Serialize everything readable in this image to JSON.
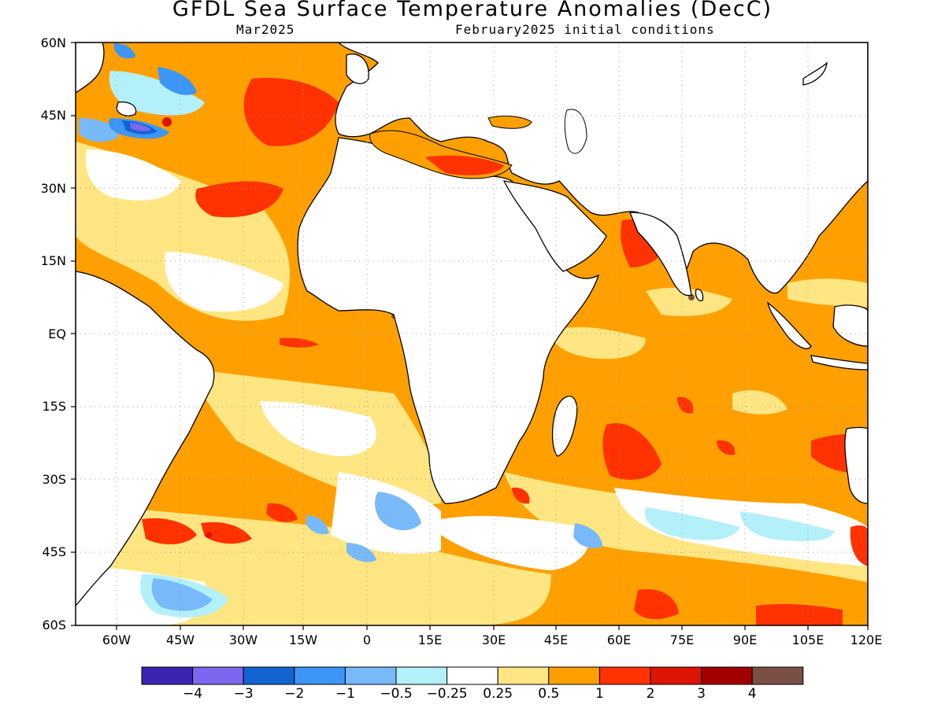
{
  "header": {
    "title": "GFDL Sea Surface Temperature Anomalies (DecC)",
    "valid_month": "Mar2025",
    "init_conditions": "February2025 initial conditions"
  },
  "axes": {
    "lat_labels": [
      "60N",
      "45N",
      "30N",
      "15N",
      "EQ",
      "15S",
      "30S",
      "45S",
      "60S"
    ],
    "lon_labels": [
      "60W",
      "45W",
      "30W",
      "15W",
      "0",
      "15E",
      "30E",
      "45E",
      "60E",
      "75E",
      "90E",
      "105E",
      "120E"
    ],
    "lon_range": [
      "70W",
      "120E"
    ],
    "lat_range": [
      "60S",
      "60N"
    ],
    "grid": "dotted"
  },
  "colorbar": {
    "colors": [
      "#3a24b0",
      "#7b68ee",
      "#1464d2",
      "#3c96f5",
      "#78b9fa",
      "#b4f0fa",
      "#ffffff",
      "#ffe682",
      "#ffa000",
      "#ff3200",
      "#dc1400",
      "#a00000",
      "#7a5046"
    ],
    "labels": [
      "−4",
      "−3",
      "−2",
      "−1",
      "−0.5",
      "−0.25",
      "0.25",
      "0.5",
      "1",
      "2",
      "3",
      "4"
    ]
  },
  "map_fields": {
    "background_anomaly": "0.5 to 1",
    "colors": {
      "land": "#ffffff",
      "coast": "#000000",
      "warm_base": "#ffa000",
      "warm_light": "#ffe682",
      "warm_strong": "#ff3200",
      "cool_light": "#b4f0fa",
      "cool_mid": "#78b9fa",
      "cool_strong": "#3c96f5",
      "cool_deep": "#1464d2",
      "cool_extreme": "#7b68ee"
    }
  }
}
